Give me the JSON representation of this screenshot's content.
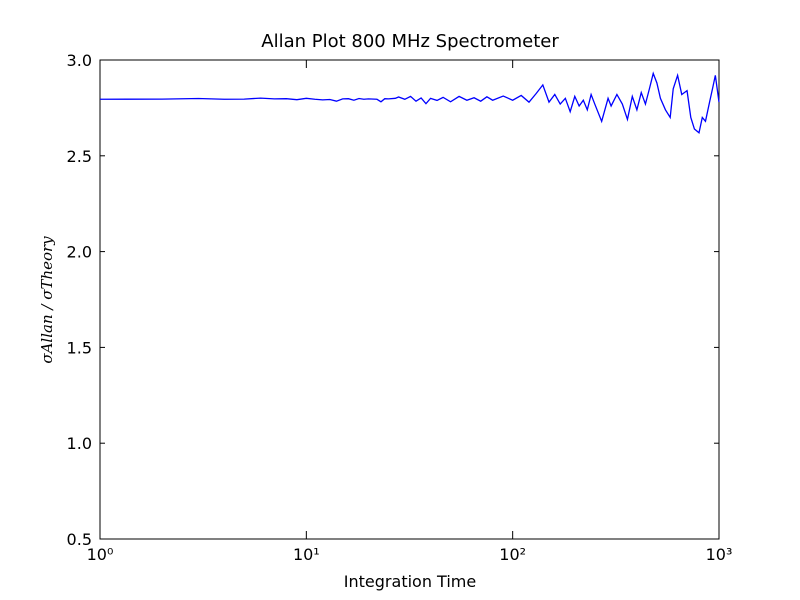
{
  "chart_data": {
    "type": "line",
    "title": "Allan Plot 800 MHz Spectrometer",
    "xlabel": "Integration Time",
    "ylabel": "σAllan / σTheory",
    "xscale": "log",
    "xlim": [
      1,
      1000
    ],
    "xticks": [
      {
        "value": 1,
        "label": "10⁰"
      },
      {
        "value": 10,
        "label": "10¹"
      },
      {
        "value": 100,
        "label": "10²"
      },
      {
        "value": 1000,
        "label": "10³"
      }
    ],
    "ylim": [
      0.5,
      3.0
    ],
    "yticks": [
      0.5,
      {
        "value": 1,
        "label": "1.0"
      },
      1.5,
      {
        "value": 2,
        "label": "2.0"
      },
      2.5,
      {
        "value": 3,
        "label": "3.0"
      }
    ],
    "grid": false,
    "series": [
      {
        "color": "#0000ff",
        "x": [
          1,
          2,
          3,
          4,
          5,
          6,
          7,
          8,
          9,
          10,
          11,
          12,
          13,
          14,
          15,
          16,
          17,
          18,
          19,
          20,
          22,
          23,
          24,
          25,
          27,
          28,
          30,
          32,
          34,
          36,
          38,
          40,
          43,
          46,
          50,
          55,
          60,
          65,
          70,
          75,
          80,
          90,
          100,
          110,
          120,
          130,
          140,
          150,
          160,
          170,
          180,
          190,
          200,
          210,
          220,
          230,
          240,
          250,
          270,
          290,
          300,
          320,
          340,
          360,
          380,
          400,
          420,
          440,
          460,
          480,
          500,
          520,
          550,
          580,
          600,
          630,
          660,
          700,
          730,
          760,
          800,
          830,
          860,
          900,
          930,
          960,
          1000
        ],
        "values": [
          2.795,
          2.796,
          2.799,
          2.795,
          2.796,
          2.801,
          2.797,
          2.798,
          2.793,
          2.8,
          2.795,
          2.792,
          2.794,
          2.785,
          2.797,
          2.798,
          2.79,
          2.799,
          2.795,
          2.797,
          2.795,
          2.782,
          2.798,
          2.797,
          2.8,
          2.807,
          2.795,
          2.81,
          2.785,
          2.802,
          2.772,
          2.8,
          2.789,
          2.805,
          2.782,
          2.81,
          2.79,
          2.803,
          2.785,
          2.808,
          2.79,
          2.812,
          2.79,
          2.815,
          2.78,
          2.825,
          2.87,
          2.78,
          2.82,
          2.77,
          2.8,
          2.73,
          2.81,
          2.76,
          2.79,
          2.74,
          2.82,
          2.77,
          2.68,
          2.8,
          2.76,
          2.82,
          2.77,
          2.69,
          2.81,
          2.74,
          2.83,
          2.77,
          2.85,
          2.93,
          2.88,
          2.8,
          2.74,
          2.7,
          2.85,
          2.92,
          2.82,
          2.84,
          2.7,
          2.64,
          2.62,
          2.7,
          2.68,
          2.78,
          2.85,
          2.92,
          2.78
        ]
      }
    ]
  }
}
